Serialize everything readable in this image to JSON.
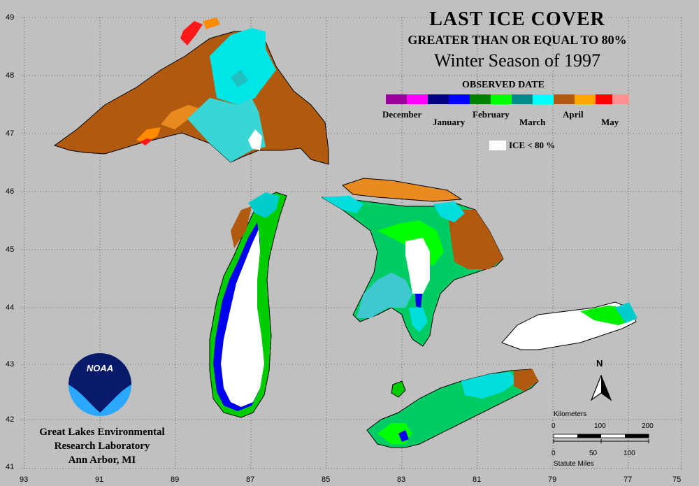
{
  "title": {
    "line1": "LAST ICE COVER",
    "line2": "GREATER THAN OR EQUAL TO 80%",
    "line3": "Winter Season of 1997",
    "legend_title": "OBSERVED DATE"
  },
  "legend": {
    "months": [
      {
        "label": "December",
        "colors": [
          "#9a009a",
          "#ff00ff"
        ]
      },
      {
        "label": "January",
        "colors": [
          "#000080",
          "#0000ff"
        ]
      },
      {
        "label": "February",
        "colors": [
          "#008000",
          "#00ff00"
        ]
      },
      {
        "label": "March",
        "colors": [
          "#008b8b",
          "#00ffff"
        ]
      },
      {
        "label": "April",
        "colors": [
          "#b05a10",
          "#ffa500"
        ]
      },
      {
        "label": "May",
        "colors": [
          "#ff0000",
          "#ff9090"
        ]
      }
    ],
    "ice_label": "ICE < 80 %",
    "ice_color": "#ffffff"
  },
  "axes": {
    "lat_labels": [
      "49",
      "48",
      "47",
      "46",
      "45",
      "44",
      "43",
      "42",
      "41"
    ],
    "lon_labels": [
      "93",
      "91",
      "89",
      "87",
      "85",
      "83",
      "81",
      "79",
      "77",
      "75"
    ]
  },
  "lab": {
    "line1": "Great Lakes Environmental",
    "line2": "Research Laboratory",
    "line3": "Ann Arbor, MI",
    "logo_text": "NOAA"
  },
  "scale": {
    "km_title": "Kilometers",
    "km_ticks": [
      "0",
      "100",
      "200"
    ],
    "mi_ticks": [
      "0",
      "50",
      "100"
    ],
    "mi_title": "Statute Miles",
    "north": "N"
  },
  "colors": {
    "background": "#c0c0c0",
    "land_outline": "#000000"
  }
}
